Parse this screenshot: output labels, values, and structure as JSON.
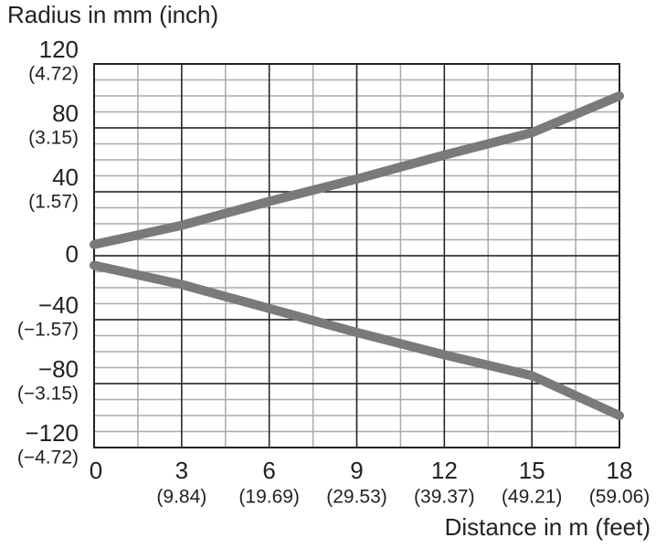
{
  "chart_data": {
    "type": "line",
    "y_axis_label": "Radius in mm (inch)",
    "x_axis_label": "Distance in m (feet)",
    "x": [
      0,
      3,
      6,
      9,
      12,
      15,
      18
    ],
    "series": [
      {
        "color": "#7a7a7a",
        "values": [
          7,
          19,
          34,
          48,
          63,
          77,
          100
        ]
      },
      {
        "color": "#7a7a7a",
        "values": [
          -6,
          -18,
          -33,
          -48,
          -62,
          -75,
          -100
        ]
      }
    ],
    "xlim": [
      0,
      18
    ],
    "xticks": [
      0,
      3,
      6,
      9,
      12,
      15,
      18
    ],
    "xtick_feet_labels": [
      null,
      "(9.84)",
      "(19.69)",
      "(29.53)",
      "(39.37)",
      "(49.21)",
      "(59.06)"
    ],
    "ylim": [
      -120,
      120
    ],
    "yticks": [
      {
        "value": 120,
        "label": "120"
      },
      {
        "value": 80,
        "label": "80"
      },
      {
        "value": 40,
        "label": "40"
      },
      0,
      {
        "value": -40,
        "label": "−40"
      },
      {
        "value": -80,
        "label": "−80"
      },
      {
        "value": -120,
        "label": "−120"
      }
    ],
    "ytick_inch_labels": [
      "(4.72)",
      "(3.15)",
      "(1.57)",
      null,
      "(−1.57)",
      "(−3.15)",
      "(−4.72)"
    ],
    "grid": true,
    "minor_grid": {
      "x": 1.5,
      "y": 10
    }
  }
}
